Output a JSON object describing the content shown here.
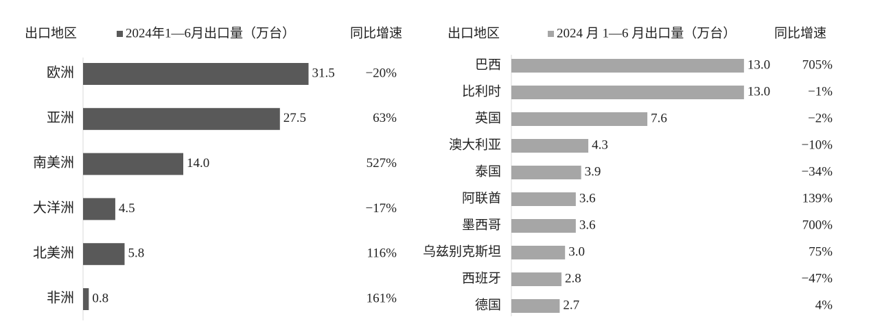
{
  "chart_data": [
    {
      "type": "hbar",
      "category_header": "出口地区",
      "growth_header": "同比增速",
      "categories": [
        "欧洲",
        "亚洲",
        "南美洲",
        "大洋洲",
        "北美洲",
        "非洲"
      ],
      "series": [
        {
          "name": "2024年1—6月出口量（万台）",
          "color": "#595959",
          "values": [
            31.5,
            27.5,
            14.0,
            4.5,
            5.8,
            0.8
          ],
          "value_labels": [
            "31.5",
            "27.5",
            "14.0",
            "4.5",
            "5.8",
            "0.8"
          ]
        }
      ],
      "growth": [
        "−20%",
        "63%",
        "527%",
        "−17%",
        "116%",
        "161%"
      ],
      "xlim": [
        0,
        35
      ]
    },
    {
      "type": "hbar",
      "category_header": "出口地区",
      "growth_header": "同比增速",
      "categories": [
        "巴西",
        "比利时",
        "英国",
        "澳大利亚",
        "泰国",
        "阿联酋",
        "墨西哥",
        "乌兹别克斯坦",
        "西班牙",
        "德国"
      ],
      "series": [
        {
          "name": "2024 月 1—6 月出口量（万台）",
          "color": "#a6a6a6",
          "values": [
            13.0,
            13.0,
            7.6,
            4.3,
            3.9,
            3.6,
            3.6,
            3.0,
            2.8,
            2.7
          ],
          "value_labels": [
            "13.0",
            "13.0",
            "7.6",
            "4.3",
            "3.9",
            "3.6",
            "3.6",
            "3.0",
            "2.8",
            "2.7"
          ]
        }
      ],
      "growth": [
        "705%",
        "−1%",
        "−2%",
        "−10%",
        "−34%",
        "139%",
        "700%",
        "75%",
        "−47%",
        "4%"
      ],
      "xlim": [
        0,
        15
      ]
    }
  ]
}
